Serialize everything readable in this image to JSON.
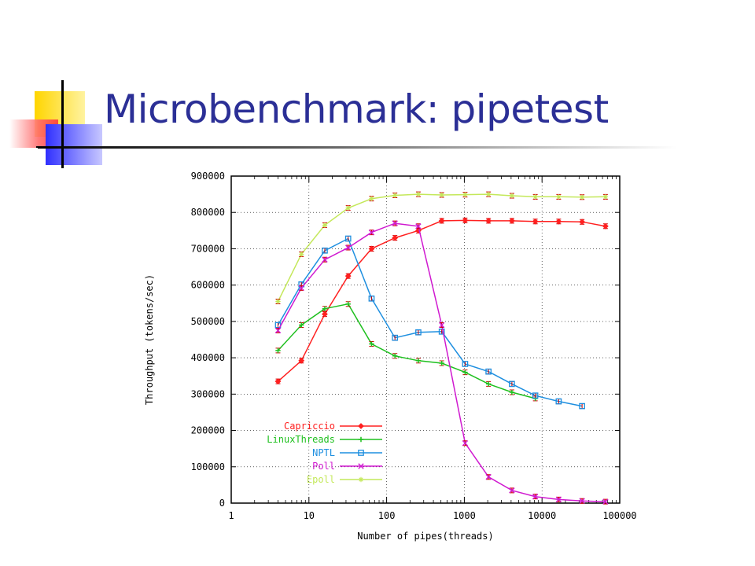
{
  "slide": {
    "title": "Microbenchmark: pipetest"
  },
  "colors": {
    "title": "#2b2f96",
    "Capriccio": "#ff2020",
    "LinuxThreads": "#1fc01f",
    "NPTL": "#1e8fe0",
    "Poll": "#d01ad0",
    "Epoll": "#c4e85a"
  },
  "chart_data": {
    "type": "line",
    "xlabel": "Number of pipes(threads)",
    "ylabel": "Throughput (tokens/sec)",
    "xscale": "log",
    "xlim": [
      1,
      100000
    ],
    "ylim": [
      0,
      900000
    ],
    "xticks": [
      "1",
      "10",
      "100",
      "1000",
      "10000",
      "100000"
    ],
    "yticks": [
      "0",
      "100000",
      "200000",
      "300000",
      "400000",
      "500000",
      "600000",
      "700000",
      "800000",
      "900000"
    ],
    "grid": true,
    "legend_position": "bottom-left",
    "series": [
      {
        "name": "Capriccio",
        "marker": "diamond",
        "x": [
          4,
          8,
          16,
          32,
          64,
          128,
          256,
          512,
          1024,
          2048,
          4096,
          8192,
          16384,
          32768,
          65536
        ],
        "y": [
          335000,
          392000,
          520000,
          625000,
          700000,
          730000,
          750000,
          777000,
          778000,
          777000,
          777000,
          775000,
          775000,
          774000,
          762000
        ]
      },
      {
        "name": "LinuxThreads",
        "marker": "plus",
        "x": [
          4,
          8,
          16,
          32,
          64,
          128,
          256,
          512,
          1024,
          2048,
          4096,
          8192
        ],
        "y": [
          420000,
          490000,
          535000,
          548000,
          438000,
          405000,
          392000,
          385000,
          360000,
          328000,
          305000,
          288000
        ]
      },
      {
        "name": "NPTL",
        "marker": "square",
        "x": [
          4,
          8,
          16,
          32,
          64,
          128,
          256,
          512,
          1024,
          2048,
          4096,
          8192,
          16384,
          32768
        ],
        "y": [
          490000,
          602000,
          695000,
          728000,
          563000,
          455000,
          470000,
          472000,
          383000,
          362000,
          328000,
          296000,
          280000,
          267000
        ]
      },
      {
        "name": "Poll",
        "marker": "x",
        "x": [
          4,
          8,
          16,
          32,
          64,
          128,
          256,
          512,
          1024,
          2048,
          4096,
          8192,
          16384,
          32768,
          65536
        ],
        "y": [
          475000,
          592000,
          670000,
          703000,
          745000,
          770000,
          762000,
          490000,
          165000,
          72000,
          35000,
          18000,
          10000,
          6000,
          4000
        ]
      },
      {
        "name": "Epoll",
        "marker": "star",
        "x": [
          4,
          8,
          16,
          32,
          64,
          128,
          256,
          512,
          1024,
          2048,
          4096,
          8192,
          16384,
          32768,
          65536
        ],
        "y": [
          555000,
          685000,
          765000,
          812000,
          838000,
          847000,
          850000,
          848000,
          849000,
          850000,
          846000,
          843000,
          843000,
          842000,
          843000
        ]
      }
    ]
  }
}
